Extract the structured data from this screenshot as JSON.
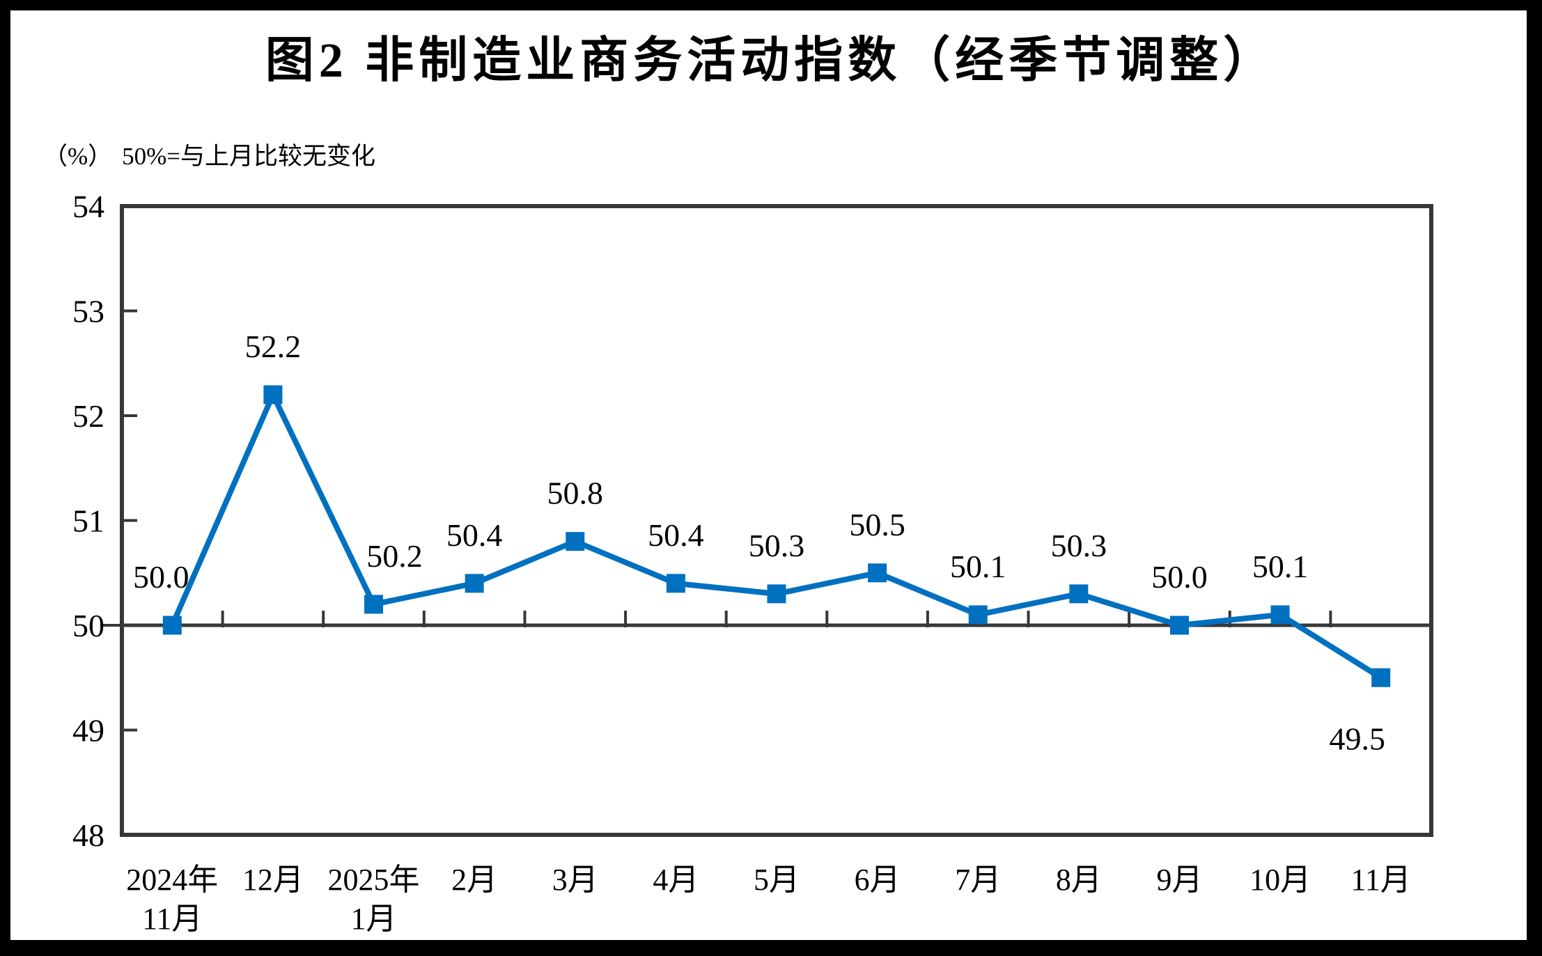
{
  "figure": {
    "title": "图2 非制造业商务活动指数（经季节调整）",
    "unit_label": "（%）",
    "reference_note": "50%=与上月比较无变化"
  },
  "chart_data": {
    "type": "line",
    "title": "图2 非制造业商务活动指数（经季节调整）",
    "unit_note": "（%） 50%=与上月比较无变化",
    "categories": [
      "2024年11月",
      "12月",
      "2025年1月",
      "2月",
      "3月",
      "4月",
      "5月",
      "6月",
      "7月",
      "8月",
      "9月",
      "10月",
      "11月"
    ],
    "category_display_lines": [
      [
        "2024年",
        "11月"
      ],
      [
        "12月"
      ],
      [
        "2025年",
        "1月"
      ],
      [
        "2月"
      ],
      [
        "3月"
      ],
      [
        "4月"
      ],
      [
        "5月"
      ],
      [
        "6月"
      ],
      [
        "7月"
      ],
      [
        "8月"
      ],
      [
        "9月"
      ],
      [
        "10月"
      ],
      [
        "11月"
      ]
    ],
    "series": [
      {
        "values": [
          50.0,
          52.2,
          50.2,
          50.4,
          50.8,
          50.4,
          50.3,
          50.5,
          50.1,
          50.3,
          50.0,
          50.1,
          49.5
        ]
      }
    ],
    "data_labels": [
      "50.0",
      "52.2",
      "50.2",
      "50.4",
      "50.8",
      "50.4",
      "50.3",
      "50.5",
      "50.1",
      "50.3",
      "50.0",
      "50.1",
      "49.5"
    ],
    "ylim": [
      48,
      54
    ],
    "yticks": [
      48,
      49,
      50,
      51,
      52,
      53,
      54
    ],
    "reference_line_y": 50,
    "grid": false,
    "legend": "none",
    "marker": "square",
    "colors": {
      "line": "#0070C0",
      "marker": "#0070C0",
      "axis": "#373737",
      "text": "#000000",
      "background": "#FFFFFF",
      "frame": "#000000"
    }
  }
}
